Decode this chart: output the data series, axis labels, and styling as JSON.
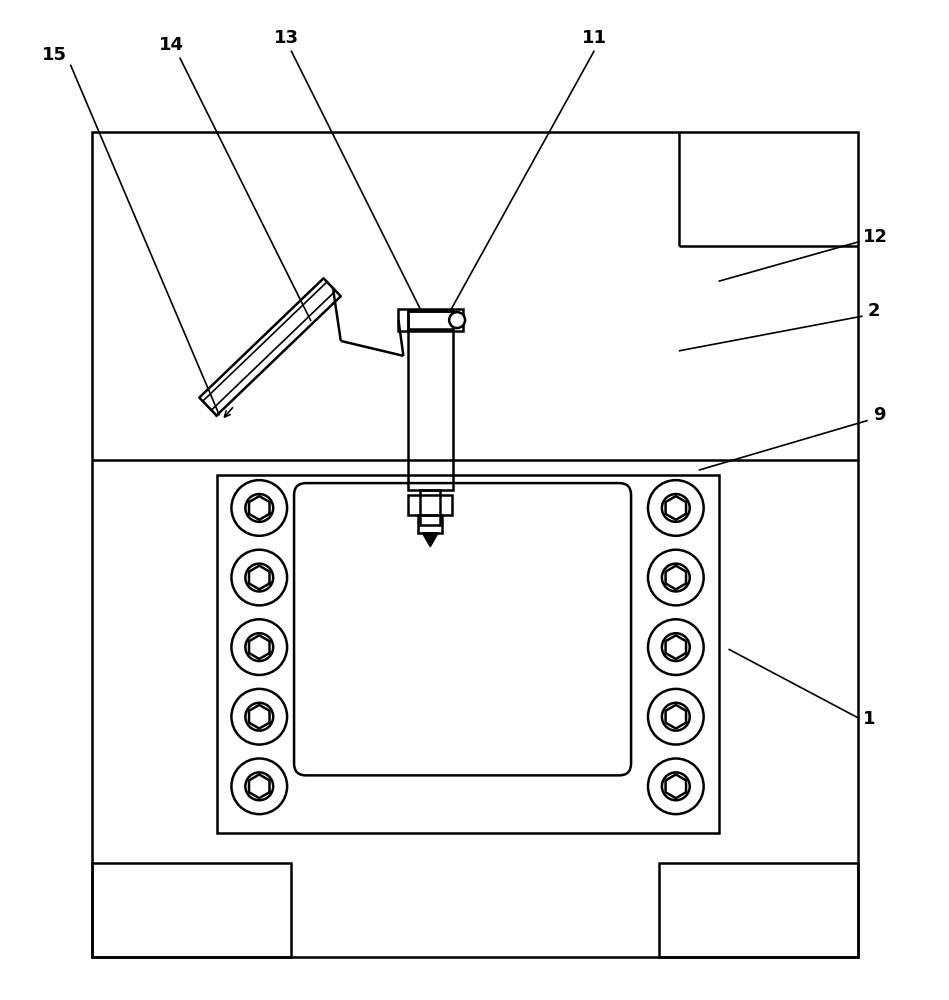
{
  "bg_color": "#ffffff",
  "line_color": "#000000",
  "lw": 1.8,
  "lw_thin": 1.2,
  "fig_width": 9.49,
  "fig_height": 10.0,
  "label_fontsize": 13
}
